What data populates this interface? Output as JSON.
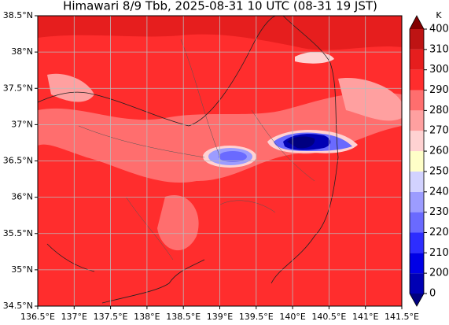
{
  "chart_data": {
    "type": "map",
    "title": "Himawari 8/9 Tbb, 2025-08-31 10 UTC (08-31 19 JST)",
    "xlim": [
      136.5,
      141.5
    ],
    "ylim": [
      34.5,
      38.5
    ],
    "xticks": [
      {
        "value": 136.5,
        "label": "136.5°E"
      },
      {
        "value": 137,
        "label": "137°E"
      },
      {
        "value": 137.5,
        "label": "137.5°E"
      },
      {
        "value": 138,
        "label": "138°E"
      },
      {
        "value": 138.5,
        "label": "138.5°E"
      },
      {
        "value": 139,
        "label": "139°E"
      },
      {
        "value": 139.5,
        "label": "139.5°E"
      },
      {
        "value": 140,
        "label": "140°E"
      },
      {
        "value": 140.5,
        "label": "140.5°E"
      },
      {
        "value": 141,
        "label": "141°E"
      },
      {
        "value": 141.5,
        "label": "141.5°E"
      }
    ],
    "yticks": [
      {
        "value": 34.5,
        "label": "34.5°N"
      },
      {
        "value": 35,
        "label": "35°N"
      },
      {
        "value": 35.5,
        "label": "35.5°N"
      },
      {
        "value": 36,
        "label": "36°N"
      },
      {
        "value": 36.5,
        "label": "36.5°N"
      },
      {
        "value": 37,
        "label": "37°N"
      },
      {
        "value": 37.5,
        "label": "37.5°N"
      },
      {
        "value": 38,
        "label": "38°N"
      },
      {
        "value": 38.5,
        "label": "38.5°N"
      }
    ],
    "grid": true,
    "colorbar": {
      "label": "K",
      "ticks": [
        0,
        200,
        210,
        220,
        230,
        240,
        250,
        260,
        270,
        280,
        290,
        300,
        310,
        400
      ],
      "colors": [
        "#000080",
        "#0000b4",
        "#0000e6",
        "#2d2dff",
        "#6a6aff",
        "#9c9cff",
        "#d2d2ff",
        "#ffffc8",
        "#ffd2d2",
        "#ffa0a0",
        "#ff6e6e",
        "#ff2d2d",
        "#e61e1e",
        "#be1414",
        "#820000"
      ]
    }
  }
}
